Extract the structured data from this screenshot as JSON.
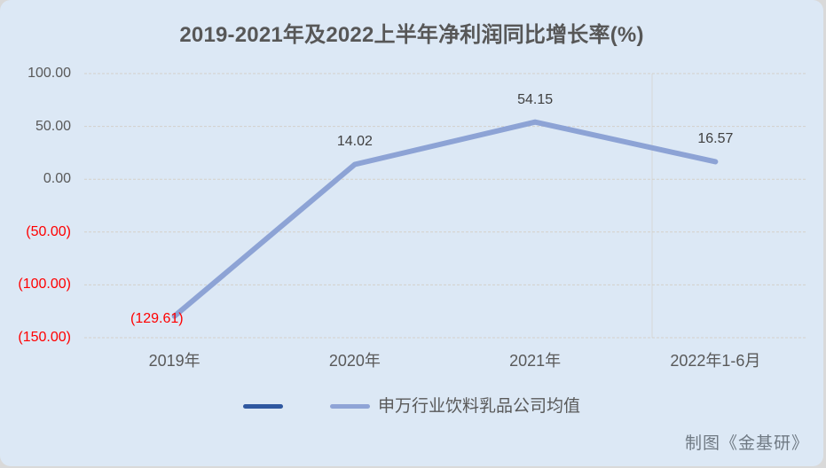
{
  "credit": {
    "text": "制图《金基研》"
  },
  "chart_data": {
    "type": "line",
    "title": "2019-2021年及2022上半年净利润同比增长率(%)",
    "categories": [
      "2019年",
      "2020年",
      "2021年",
      "2022年1-6月"
    ],
    "series": [
      {
        "name": "",
        "color": "#2f58a0",
        "values": []
      },
      {
        "name": "申万行业饮料乳品公司均值",
        "color": "#8fa4d6",
        "values": [
          -129.61,
          14.02,
          54.15,
          16.57
        ]
      }
    ],
    "data_labels": [
      {
        "text": "(129.61)",
        "color": "#ff0000",
        "position": "left"
      },
      {
        "text": "14.02",
        "color": "#3f3f3f",
        "position": "above"
      },
      {
        "text": "54.15",
        "color": "#3f3f3f",
        "position": "above"
      },
      {
        "text": "16.57",
        "color": "#3f3f3f",
        "position": "above"
      }
    ],
    "y_axis": {
      "min": -150,
      "max": 100,
      "step": 50,
      "ticks": [
        {
          "value": 100,
          "label": "100.00",
          "color": "#595959"
        },
        {
          "value": 50,
          "label": "50.00",
          "color": "#595959"
        },
        {
          "value": 0,
          "label": "0.00",
          "color": "#595959"
        },
        {
          "value": -50,
          "label": "(50.00)",
          "color": "#ff0000"
        },
        {
          "value": -100,
          "label": "(100.00)",
          "color": "#ff0000"
        },
        {
          "value": -150,
          "label": "(150.00)",
          "color": "#ff0000"
        }
      ]
    },
    "legend": {
      "position": "bottom"
    },
    "grid": true,
    "colors": {
      "background": "#dce8f5",
      "gridline": "#d3d0ca",
      "series_line": "#8da3d5",
      "negative_text": "#ff0000"
    }
  }
}
